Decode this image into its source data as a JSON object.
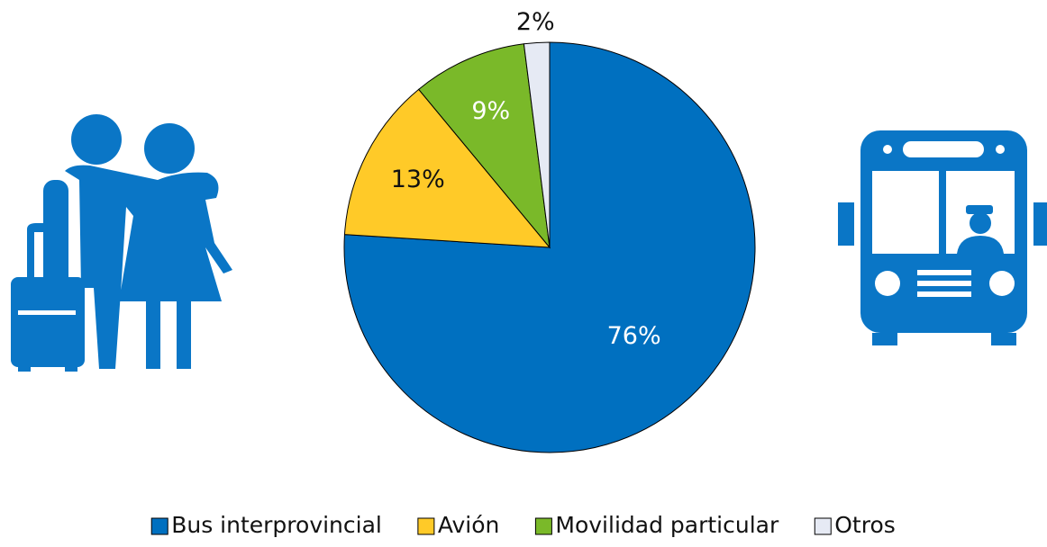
{
  "chart_data": {
    "type": "pie",
    "categories": [
      "Bus interprovincial",
      "Avión",
      "Movilidad particular",
      "Otros"
    ],
    "values": [
      76,
      13,
      9,
      2
    ],
    "value_labels": [
      "76%",
      "13%",
      "9%",
      "2%"
    ],
    "colors": [
      "#0070c0",
      "#ffca28",
      "#7ab929",
      "#e6eaf4"
    ],
    "legend": "bottom"
  }
}
